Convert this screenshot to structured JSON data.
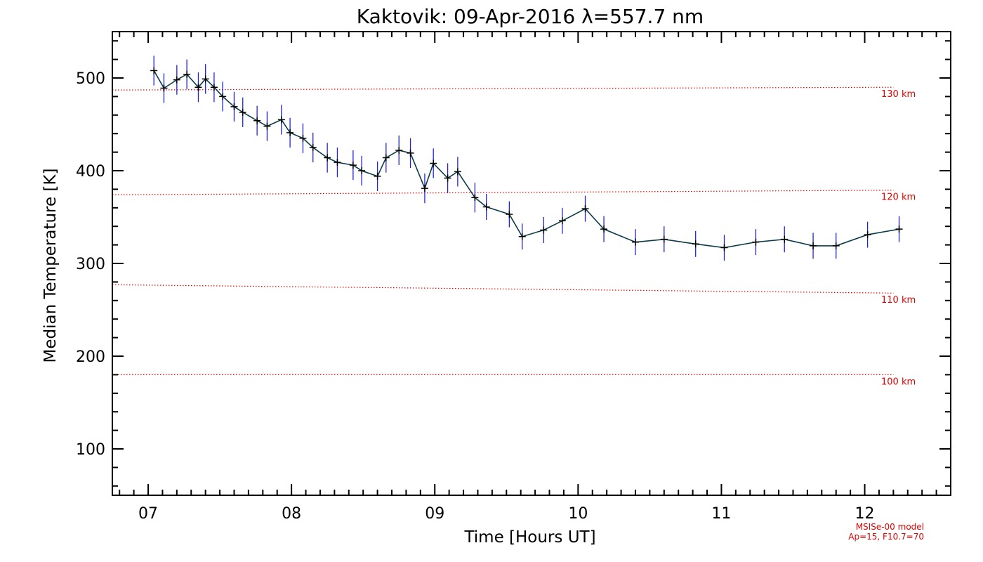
{
  "colors": {
    "frame": "#000000",
    "series_line": "#0c3b4a",
    "error_bar": "#2222dd",
    "marker": "#000000",
    "reference": "#e00000"
  },
  "chart_data": {
    "type": "line",
    "title": "Kaktovik: 09-Apr-2016 λ=557.7 nm",
    "xlabel": "Time [Hours UT]",
    "ylabel": "Median Temperature [K]",
    "xlim": [
      6.75,
      12.6
    ],
    "ylim": [
      50,
      550
    ],
    "x_ticks": [
      7,
      8,
      9,
      10,
      11,
      12
    ],
    "x_tick_labels": [
      "07",
      "08",
      "09",
      "10",
      "11",
      "12"
    ],
    "y_ticks": [
      100,
      200,
      300,
      400,
      500
    ],
    "y_tick_labels": [
      "100",
      "200",
      "300",
      "400",
      "500"
    ],
    "grid": false,
    "series": [
      {
        "x": [
          7.04,
          7.11,
          7.2,
          7.27,
          7.35,
          7.4,
          7.46,
          7.52,
          7.6,
          7.66,
          7.76,
          7.83,
          7.93,
          7.99,
          8.08,
          8.15,
          8.25,
          8.32,
          8.43,
          8.49,
          8.6,
          8.66,
          8.75,
          8.83,
          8.93,
          8.99,
          9.09,
          9.16,
          9.28,
          9.36,
          9.52,
          9.61,
          9.76,
          9.89,
          10.05,
          10.18,
          10.4,
          10.6,
          10.82,
          11.02,
          11.24,
          11.44,
          11.64,
          11.8,
          12.02,
          12.24
        ],
        "values": [
          508,
          489,
          498,
          504,
          490,
          499,
          490,
          480,
          469,
          463,
          454,
          448,
          455,
          441,
          435,
          425,
          414,
          409,
          406,
          400,
          394,
          414,
          422,
          419,
          381,
          408,
          392,
          399,
          371,
          361,
          353,
          329,
          336,
          346,
          359,
          337,
          323,
          326,
          321,
          317,
          323,
          326,
          319,
          319,
          331,
          337
        ],
        "errors": [
          16,
          16,
          16,
          16,
          16,
          16,
          16,
          16,
          16,
          16,
          16,
          16,
          16,
          16,
          16,
          16,
          16,
          16,
          16,
          16,
          16,
          16,
          16,
          16,
          16,
          16,
          16,
          16,
          16,
          14,
          14,
          14,
          14,
          14,
          14,
          14,
          14,
          14,
          14,
          14,
          14,
          14,
          14,
          14,
          14,
          14
        ]
      }
    ],
    "reference_lines": [
      {
        "label": "130 km",
        "y_start": 487,
        "y_end": 490
      },
      {
        "label": "120 km",
        "y_start": 374,
        "y_end": 379
      },
      {
        "label": "110 km",
        "y_start": 277,
        "y_end": 268
      },
      {
        "label": "100 km",
        "y_start": 180,
        "y_end": 180
      }
    ],
    "footnote": [
      "MSISe-00 model",
      "Ap=15, F10.7=70"
    ]
  }
}
